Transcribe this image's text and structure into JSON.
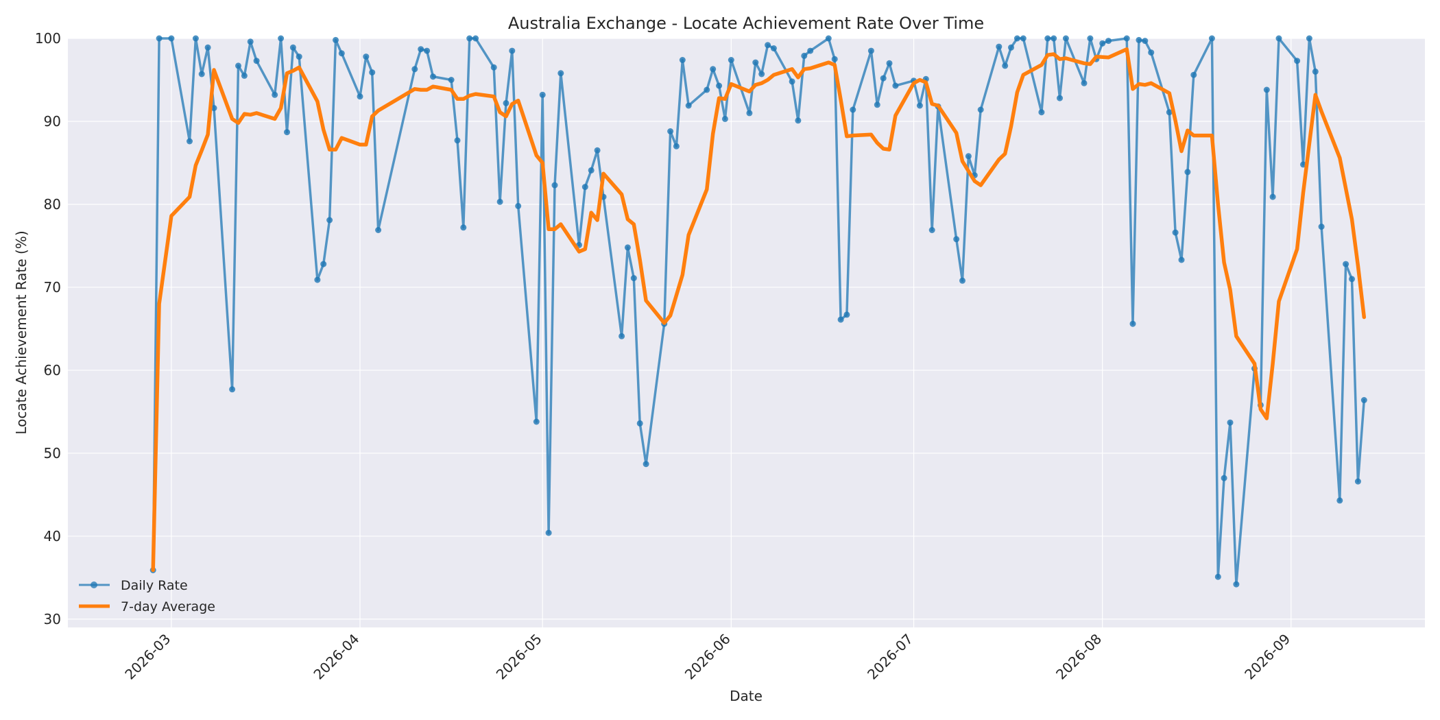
{
  "chart_data": {
    "type": "line",
    "title": "Australia Exchange - Locate Achievement Rate Over Time",
    "xlabel": "Date",
    "ylabel": "Locate Achievement Rate (%)",
    "xlim": [
      "2026-02-12",
      "2026-09-23"
    ],
    "ylim": [
      29,
      100
    ],
    "yticks": [
      30,
      40,
      50,
      60,
      70,
      80,
      90,
      100
    ],
    "xticks": [
      "2026-03-01",
      "2026-04-01",
      "2026-05-01",
      "2026-06-01",
      "2026-07-01",
      "2026-08-01",
      "2026-09-01"
    ],
    "xtick_labels": [
      "2026-03",
      "2026-04",
      "2026-05",
      "2026-06",
      "2026-07",
      "2026-08",
      "2026-09"
    ],
    "grid": true,
    "legend_position": "bottom-left",
    "series": [
      {
        "name": "Daily Rate",
        "color": "#1f77b4",
        "marker": "circle",
        "points": [
          [
            "2026-02-26",
            35.9
          ],
          [
            "2026-02-27",
            100.0
          ],
          [
            "2026-03-01",
            100.0
          ],
          [
            "2026-03-04",
            87.6
          ],
          [
            "2026-03-05",
            100.0
          ],
          [
            "2026-03-06",
            95.7
          ],
          [
            "2026-03-07",
            98.9
          ],
          [
            "2026-03-08",
            91.6
          ],
          [
            "2026-03-11",
            57.7
          ],
          [
            "2026-03-12",
            96.7
          ],
          [
            "2026-03-13",
            95.5
          ],
          [
            "2026-03-14",
            99.6
          ],
          [
            "2026-03-15",
            97.3
          ],
          [
            "2026-03-18",
            93.2
          ],
          [
            "2026-03-19",
            100.0
          ],
          [
            "2026-03-20",
            88.7
          ],
          [
            "2026-03-21",
            98.9
          ],
          [
            "2026-03-22",
            97.8
          ],
          [
            "2026-03-25",
            70.9
          ],
          [
            "2026-03-26",
            72.8
          ],
          [
            "2026-03-27",
            78.1
          ],
          [
            "2026-03-28",
            99.8
          ],
          [
            "2026-03-29",
            98.2
          ],
          [
            "2026-04-01",
            93.0
          ],
          [
            "2026-04-02",
            97.8
          ],
          [
            "2026-04-03",
            95.9
          ],
          [
            "2026-04-04",
            76.9
          ],
          [
            "2026-04-10",
            96.3
          ],
          [
            "2026-04-11",
            98.7
          ],
          [
            "2026-04-12",
            98.5
          ],
          [
            "2026-04-13",
            95.4
          ],
          [
            "2026-04-16",
            95.0
          ],
          [
            "2026-04-17",
            87.7
          ],
          [
            "2026-04-18",
            77.2
          ],
          [
            "2026-04-19",
            100.0
          ],
          [
            "2026-04-20",
            100.0
          ],
          [
            "2026-04-23",
            96.5
          ],
          [
            "2026-04-24",
            80.3
          ],
          [
            "2026-04-25",
            92.2
          ],
          [
            "2026-04-26",
            98.5
          ],
          [
            "2026-04-27",
            79.8
          ],
          [
            "2026-04-30",
            53.8
          ],
          [
            "2026-05-01",
            93.2
          ],
          [
            "2026-05-02",
            40.4
          ],
          [
            "2026-05-03",
            82.3
          ],
          [
            "2026-05-04",
            95.8
          ],
          [
            "2026-05-07",
            75.1
          ],
          [
            "2026-05-08",
            82.1
          ],
          [
            "2026-05-09",
            84.1
          ],
          [
            "2026-05-10",
            86.5
          ],
          [
            "2026-05-11",
            80.9
          ],
          [
            "2026-05-14",
            64.1
          ],
          [
            "2026-05-15",
            74.8
          ],
          [
            "2026-05-16",
            71.1
          ],
          [
            "2026-05-17",
            53.6
          ],
          [
            "2026-05-18",
            48.7
          ],
          [
            "2026-05-21",
            65.6
          ],
          [
            "2026-05-22",
            88.8
          ],
          [
            "2026-05-23",
            87.0
          ],
          [
            "2026-05-24",
            97.4
          ],
          [
            "2026-05-25",
            91.9
          ],
          [
            "2026-05-28",
            93.8
          ],
          [
            "2026-05-29",
            96.3
          ],
          [
            "2026-05-30",
            94.3
          ],
          [
            "2026-05-31",
            90.3
          ],
          [
            "2026-06-01",
            97.4
          ],
          [
            "2026-06-04",
            91.0
          ],
          [
            "2026-06-05",
            97.1
          ],
          [
            "2026-06-06",
            95.7
          ],
          [
            "2026-06-07",
            99.2
          ],
          [
            "2026-06-08",
            98.8
          ],
          [
            "2026-06-11",
            94.8
          ],
          [
            "2026-06-12",
            90.1
          ],
          [
            "2026-06-13",
            97.9
          ],
          [
            "2026-06-14",
            98.5
          ],
          [
            "2026-06-17",
            100.0
          ],
          [
            "2026-06-18",
            97.5
          ],
          [
            "2026-06-19",
            66.1
          ],
          [
            "2026-06-20",
            66.7
          ],
          [
            "2026-06-21",
            91.4
          ],
          [
            "2026-06-24",
            98.5
          ],
          [
            "2026-06-25",
            92.0
          ],
          [
            "2026-06-26",
            95.2
          ],
          [
            "2026-06-27",
            97.0
          ],
          [
            "2026-06-28",
            94.3
          ],
          [
            "2026-07-01",
            94.9
          ],
          [
            "2026-07-02",
            91.9
          ],
          [
            "2026-07-03",
            95.1
          ],
          [
            "2026-07-04",
            76.9
          ],
          [
            "2026-07-05",
            91.8
          ],
          [
            "2026-07-08",
            75.8
          ],
          [
            "2026-07-09",
            70.8
          ],
          [
            "2026-07-10",
            85.8
          ],
          [
            "2026-07-11",
            83.5
          ],
          [
            "2026-07-12",
            91.4
          ],
          [
            "2026-07-15",
            99.0
          ],
          [
            "2026-07-16",
            96.7
          ],
          [
            "2026-07-17",
            98.9
          ],
          [
            "2026-07-18",
            100.0
          ],
          [
            "2026-07-19",
            100.0
          ],
          [
            "2026-07-22",
            91.1
          ],
          [
            "2026-07-23",
            100.0
          ],
          [
            "2026-07-24",
            100.0
          ],
          [
            "2026-07-25",
            92.8
          ],
          [
            "2026-07-26",
            100.0
          ],
          [
            "2026-07-29",
            94.6
          ],
          [
            "2026-07-30",
            100.0
          ],
          [
            "2026-07-31",
            97.5
          ],
          [
            "2026-08-01",
            99.4
          ],
          [
            "2026-08-02",
            99.7
          ],
          [
            "2026-08-05",
            100.0
          ],
          [
            "2026-08-06",
            65.6
          ],
          [
            "2026-08-07",
            99.8
          ],
          [
            "2026-08-08",
            99.7
          ],
          [
            "2026-08-09",
            98.3
          ],
          [
            "2026-08-12",
            91.1
          ],
          [
            "2026-08-13",
            76.6
          ],
          [
            "2026-08-14",
            73.3
          ],
          [
            "2026-08-15",
            83.9
          ],
          [
            "2026-08-16",
            95.6
          ],
          [
            "2026-08-19",
            100.0
          ],
          [
            "2026-08-20",
            35.1
          ],
          [
            "2026-08-21",
            47.0
          ],
          [
            "2026-08-22",
            53.7
          ],
          [
            "2026-08-23",
            34.2
          ],
          [
            "2026-08-26",
            60.2
          ],
          [
            "2026-08-27",
            55.8
          ],
          [
            "2026-08-28",
            93.8
          ],
          [
            "2026-08-29",
            80.9
          ],
          [
            "2026-08-30",
            100.0
          ],
          [
            "2026-09-02",
            97.3
          ],
          [
            "2026-09-03",
            84.8
          ],
          [
            "2026-09-04",
            100.0
          ],
          [
            "2026-09-05",
            96.0
          ],
          [
            "2026-09-06",
            77.3
          ],
          [
            "2026-09-09",
            44.3
          ],
          [
            "2026-09-10",
            72.8
          ],
          [
            "2026-09-11",
            71.0
          ],
          [
            "2026-09-12",
            46.6
          ],
          [
            "2026-09-13",
            56.4
          ]
        ]
      },
      {
        "name": "7-day Average",
        "color": "#ff7f0e",
        "marker": "none",
        "points": [
          [
            "2026-02-26",
            35.9
          ],
          [
            "2026-02-27",
            68.0
          ],
          [
            "2026-03-01",
            78.6
          ],
          [
            "2026-03-04",
            80.9
          ],
          [
            "2026-03-05",
            84.7
          ],
          [
            "2026-03-06",
            86.5
          ],
          [
            "2026-03-07",
            88.4
          ],
          [
            "2026-03-08",
            96.2
          ],
          [
            "2026-03-11",
            90.3
          ],
          [
            "2026-03-12",
            89.8
          ],
          [
            "2026-03-13",
            90.9
          ],
          [
            "2026-03-14",
            90.8
          ],
          [
            "2026-03-15",
            91.0
          ],
          [
            "2026-03-18",
            90.3
          ],
          [
            "2026-03-19",
            91.6
          ],
          [
            "2026-03-20",
            95.8
          ],
          [
            "2026-03-21",
            96.1
          ],
          [
            "2026-03-22",
            96.5
          ],
          [
            "2026-03-25",
            92.4
          ],
          [
            "2026-03-26",
            89.0
          ],
          [
            "2026-03-27",
            86.6
          ],
          [
            "2026-03-28",
            86.6
          ],
          [
            "2026-03-29",
            88.0
          ],
          [
            "2026-04-01",
            87.2
          ],
          [
            "2026-04-02",
            87.2
          ],
          [
            "2026-04-03",
            90.6
          ],
          [
            "2026-04-04",
            91.3
          ],
          [
            "2026-04-10",
            93.9
          ],
          [
            "2026-04-11",
            93.8
          ],
          [
            "2026-04-12",
            93.8
          ],
          [
            "2026-04-13",
            94.2
          ],
          [
            "2026-04-16",
            93.8
          ],
          [
            "2026-04-17",
            92.7
          ],
          [
            "2026-04-18",
            92.7
          ],
          [
            "2026-04-19",
            93.1
          ],
          [
            "2026-04-20",
            93.3
          ],
          [
            "2026-04-23",
            93.0
          ],
          [
            "2026-04-24",
            91.1
          ],
          [
            "2026-04-25",
            90.6
          ],
          [
            "2026-04-26",
            92.1
          ],
          [
            "2026-04-27",
            92.5
          ],
          [
            "2026-04-30",
            85.9
          ],
          [
            "2026-05-01",
            85.0
          ],
          [
            "2026-05-02",
            77.0
          ],
          [
            "2026-05-03",
            77.0
          ],
          [
            "2026-05-04",
            77.6
          ],
          [
            "2026-05-07",
            74.3
          ],
          [
            "2026-05-08",
            74.6
          ],
          [
            "2026-05-09",
            79.0
          ],
          [
            "2026-05-10",
            78.1
          ],
          [
            "2026-05-11",
            83.7
          ],
          [
            "2026-05-14",
            81.2
          ],
          [
            "2026-05-15",
            78.2
          ],
          [
            "2026-05-16",
            77.6
          ],
          [
            "2026-05-17",
            73.3
          ],
          [
            "2026-05-18",
            68.4
          ],
          [
            "2026-05-21",
            65.7
          ],
          [
            "2026-05-22",
            66.6
          ],
          [
            "2026-05-24",
            71.5
          ],
          [
            "2026-05-25",
            76.3
          ],
          [
            "2026-05-28",
            81.8
          ],
          [
            "2026-05-29",
            88.5
          ],
          [
            "2026-05-30",
            92.8
          ],
          [
            "2026-05-31",
            92.7
          ],
          [
            "2026-06-01",
            94.5
          ],
          [
            "2026-06-04",
            93.6
          ],
          [
            "2026-06-05",
            94.4
          ],
          [
            "2026-06-06",
            94.6
          ],
          [
            "2026-06-07",
            95.0
          ],
          [
            "2026-06-08",
            95.6
          ],
          [
            "2026-06-11",
            96.3
          ],
          [
            "2026-06-12",
            95.3
          ],
          [
            "2026-06-13",
            96.3
          ],
          [
            "2026-06-14",
            96.4
          ],
          [
            "2026-06-17",
            97.1
          ],
          [
            "2026-06-18",
            96.8
          ],
          [
            "2026-06-19",
            92.6
          ],
          [
            "2026-06-20",
            88.2
          ],
          [
            "2026-06-21",
            88.3
          ],
          [
            "2026-06-24",
            88.4
          ],
          [
            "2026-06-25",
            87.4
          ],
          [
            "2026-06-26",
            86.7
          ],
          [
            "2026-06-27",
            86.6
          ],
          [
            "2026-06-28",
            90.7
          ],
          [
            "2026-07-01",
            94.6
          ],
          [
            "2026-07-02",
            95.0
          ],
          [
            "2026-07-03",
            94.7
          ],
          [
            "2026-07-04",
            92.1
          ],
          [
            "2026-07-05",
            91.9
          ],
          [
            "2026-07-08",
            88.6
          ],
          [
            "2026-07-09",
            85.2
          ],
          [
            "2026-07-10",
            84.0
          ],
          [
            "2026-07-11",
            82.8
          ],
          [
            "2026-07-12",
            82.3
          ],
          [
            "2026-07-15",
            85.4
          ],
          [
            "2026-07-16",
            86.1
          ],
          [
            "2026-07-17",
            89.4
          ],
          [
            "2026-07-18",
            93.5
          ],
          [
            "2026-07-19",
            95.6
          ],
          [
            "2026-07-22",
            96.8
          ],
          [
            "2026-07-23",
            98.0
          ],
          [
            "2026-07-24",
            98.1
          ],
          [
            "2026-07-25",
            97.5
          ],
          [
            "2026-07-26",
            97.6
          ],
          [
            "2026-07-29",
            97.0
          ],
          [
            "2026-07-30",
            96.9
          ],
          [
            "2026-07-31",
            97.8
          ],
          [
            "2026-08-02",
            97.7
          ],
          [
            "2026-08-05",
            98.7
          ],
          [
            "2026-08-06",
            93.9
          ],
          [
            "2026-08-07",
            94.5
          ],
          [
            "2026-08-08",
            94.4
          ],
          [
            "2026-08-09",
            94.6
          ],
          [
            "2026-08-12",
            93.4
          ],
          [
            "2026-08-13",
            90.1
          ],
          [
            "2026-08-14",
            86.4
          ],
          [
            "2026-08-15",
            88.9
          ],
          [
            "2026-08-16",
            88.3
          ],
          [
            "2026-08-19",
            88.3
          ],
          [
            "2026-08-20",
            80.0
          ],
          [
            "2026-08-21",
            73.0
          ],
          [
            "2026-08-22",
            69.7
          ],
          [
            "2026-08-23",
            64.1
          ],
          [
            "2026-08-26",
            60.8
          ],
          [
            "2026-08-27",
            55.3
          ],
          [
            "2026-08-28",
            54.2
          ],
          [
            "2026-08-29",
            60.8
          ],
          [
            "2026-08-30",
            68.3
          ],
          [
            "2026-09-02",
            74.6
          ],
          [
            "2026-09-03",
            81.4
          ],
          [
            "2026-09-05",
            93.2
          ],
          [
            "2026-09-06",
            91.2
          ],
          [
            "2026-09-09",
            85.6
          ],
          [
            "2026-09-11",
            78.2
          ],
          [
            "2026-09-12",
            72.6
          ],
          [
            "2026-09-13",
            66.4
          ]
        ]
      }
    ]
  }
}
